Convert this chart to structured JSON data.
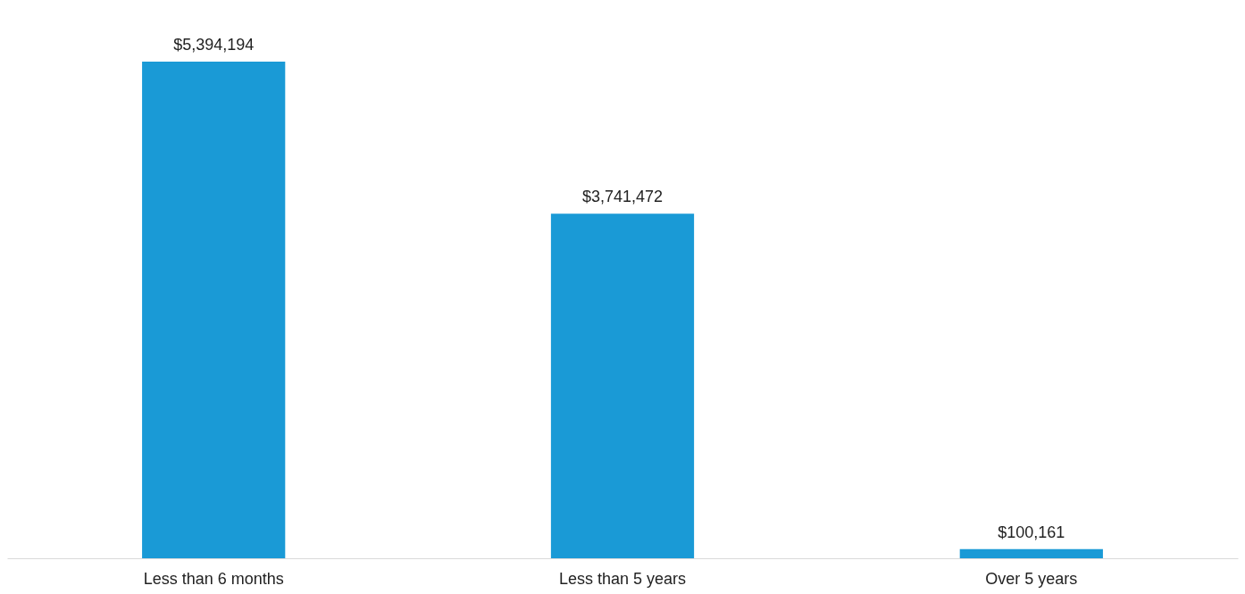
{
  "chart_data": {
    "type": "bar",
    "categories": [
      "Less than 6 months",
      "Less than 5 years",
      "Over 5 years"
    ],
    "values": [
      5394194,
      3741472,
      100161
    ],
    "value_labels": [
      "$5,394,194",
      "$3,741,472",
      "$100,161"
    ],
    "color": "#1a9ad6"
  }
}
